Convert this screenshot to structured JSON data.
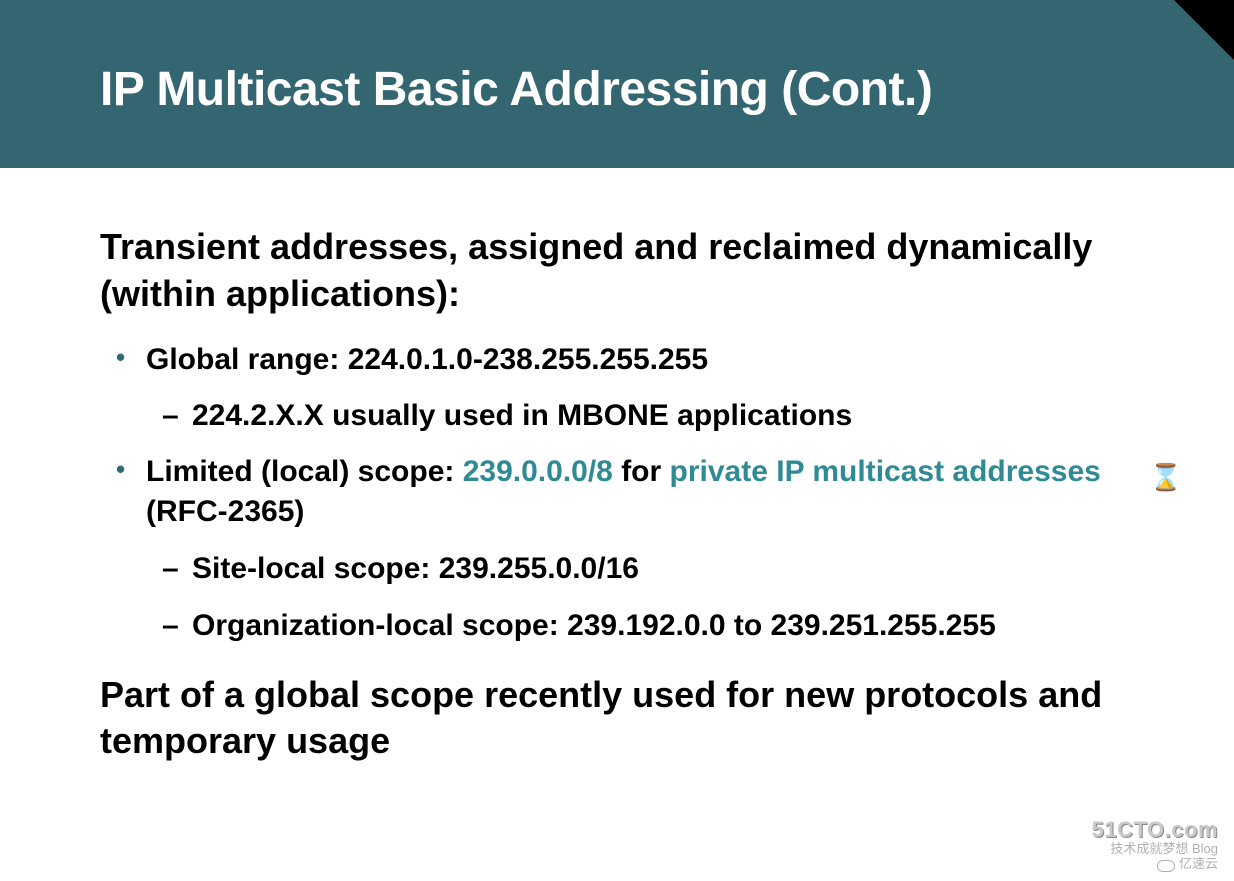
{
  "title": "IP Multicast Basic Addressing (Cont.)",
  "titlebar_bg": "#336670",
  "accent_color": "#2f8a94",
  "heading1": "Transient addresses, assigned and reclaimed dynamically (within applications):",
  "bullets": {
    "b1": {
      "label": "Global range: ",
      "value": "224.0.1.0-238.255.255.255",
      "sub": {
        "s1": "224.2.X.X usually used in MBONE applications"
      }
    },
    "b2": {
      "prefix": "Limited (local) scope: ",
      "hl1": "239.0.0.0/8",
      "mid": " for ",
      "hl2": "private IP multicast addresses",
      "suffix": " (RFC-2365)",
      "sub": {
        "s1_label": "Site-local scope: ",
        "s1_value": "239.255.0.0/16",
        "s2_label": "Organization-local scope: ",
        "s2_value": "239.192.0.0 to 239.251.255.255"
      }
    }
  },
  "heading2": "Part of a global scope recently used for new protocols and temporary usage",
  "hourglass_glyph": "⌛",
  "watermark": {
    "line1": "51CTO.com",
    "line2": "技术成就梦想  Blog",
    "line3": "亿速云"
  }
}
